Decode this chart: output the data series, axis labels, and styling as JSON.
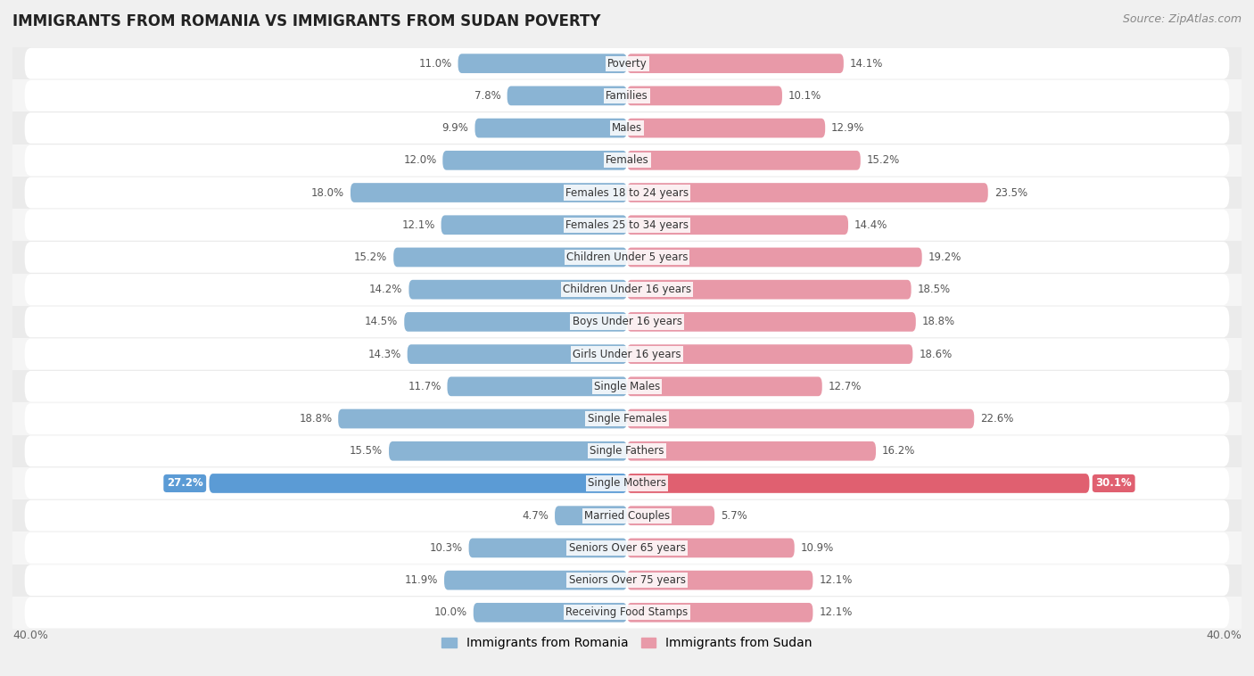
{
  "title": "IMMIGRANTS FROM ROMANIA VS IMMIGRANTS FROM SUDAN POVERTY",
  "source": "Source: ZipAtlas.com",
  "categories": [
    "Poverty",
    "Families",
    "Males",
    "Females",
    "Females 18 to 24 years",
    "Females 25 to 34 years",
    "Children Under 5 years",
    "Children Under 16 years",
    "Boys Under 16 years",
    "Girls Under 16 years",
    "Single Males",
    "Single Females",
    "Single Fathers",
    "Single Mothers",
    "Married Couples",
    "Seniors Over 65 years",
    "Seniors Over 75 years",
    "Receiving Food Stamps"
  ],
  "romania_values": [
    11.0,
    7.8,
    9.9,
    12.0,
    18.0,
    12.1,
    15.2,
    14.2,
    14.5,
    14.3,
    11.7,
    18.8,
    15.5,
    27.2,
    4.7,
    10.3,
    11.9,
    10.0
  ],
  "sudan_values": [
    14.1,
    10.1,
    12.9,
    15.2,
    23.5,
    14.4,
    19.2,
    18.5,
    18.8,
    18.6,
    12.7,
    22.6,
    16.2,
    30.1,
    5.7,
    10.9,
    12.1,
    12.1
  ],
  "romania_color": "#8ab4d4",
  "sudan_color": "#e899a8",
  "romania_highlight_color": "#5b9bd5",
  "sudan_highlight_color": "#e06070",
  "highlight_rows": [
    13
  ],
  "row_color_even": "#ebebeb",
  "row_color_odd": "#f5f5f5",
  "background_color": "#f0f0f0",
  "xlim": 40.0,
  "legend_romania": "Immigrants from Romania",
  "legend_sudan": "Immigrants from Sudan",
  "value_fontsize": 8.5,
  "label_fontsize": 8.5,
  "title_fontsize": 12,
  "source_fontsize": 9
}
